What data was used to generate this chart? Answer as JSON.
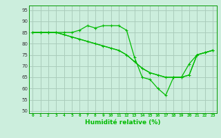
{
  "title": "",
  "xlabel": "Humidité relative (%)",
  "ylabel": "",
  "bg_color": "#cceedd",
  "grid_color": "#aaccbb",
  "line_color": "#00bb00",
  "marker": "+",
  "xlim": [
    -0.5,
    23.5
  ],
  "ylim": [
    49,
    97
  ],
  "yticks": [
    50,
    55,
    60,
    65,
    70,
    75,
    80,
    85,
    90,
    95
  ],
  "xticks": [
    0,
    1,
    2,
    3,
    4,
    5,
    6,
    7,
    8,
    9,
    10,
    11,
    12,
    13,
    14,
    15,
    16,
    17,
    18,
    19,
    20,
    21,
    22,
    23
  ],
  "series1_x": [
    0,
    1,
    2,
    3,
    4,
    5,
    6,
    7,
    8,
    9,
    10,
    11,
    12,
    13,
    14,
    15,
    16,
    17,
    18,
    19,
    20,
    21,
    22,
    23
  ],
  "series1_y": [
    85,
    85,
    85,
    85,
    85,
    85,
    86,
    88,
    87,
    88,
    88,
    88,
    86,
    74,
    65,
    64,
    60,
    57,
    65,
    65,
    71,
    75,
    76,
    77
  ],
  "series2_x": [
    0,
    1,
    2,
    3,
    4,
    5,
    6,
    7,
    8,
    9,
    10,
    11,
    12,
    13,
    14,
    15,
    16,
    17,
    18,
    19,
    20,
    21,
    22,
    23
  ],
  "series2_y": [
    85,
    85,
    85,
    85,
    84,
    83,
    82,
    81,
    80,
    79,
    78,
    77,
    75,
    72,
    69,
    67,
    66,
    65,
    65,
    65,
    66,
    75,
    76,
    77
  ],
  "series3_x": [
    0,
    1,
    2,
    3,
    4,
    5,
    6,
    7,
    8,
    9,
    10,
    11,
    12,
    13,
    14,
    15,
    16,
    17,
    18,
    19,
    20,
    21,
    22,
    23
  ],
  "series3_y": [
    85,
    85,
    85,
    85,
    84,
    83,
    82,
    81,
    80,
    79,
    78,
    77,
    75,
    72,
    69,
    67,
    66,
    65,
    65,
    65,
    66,
    75,
    76,
    77
  ]
}
